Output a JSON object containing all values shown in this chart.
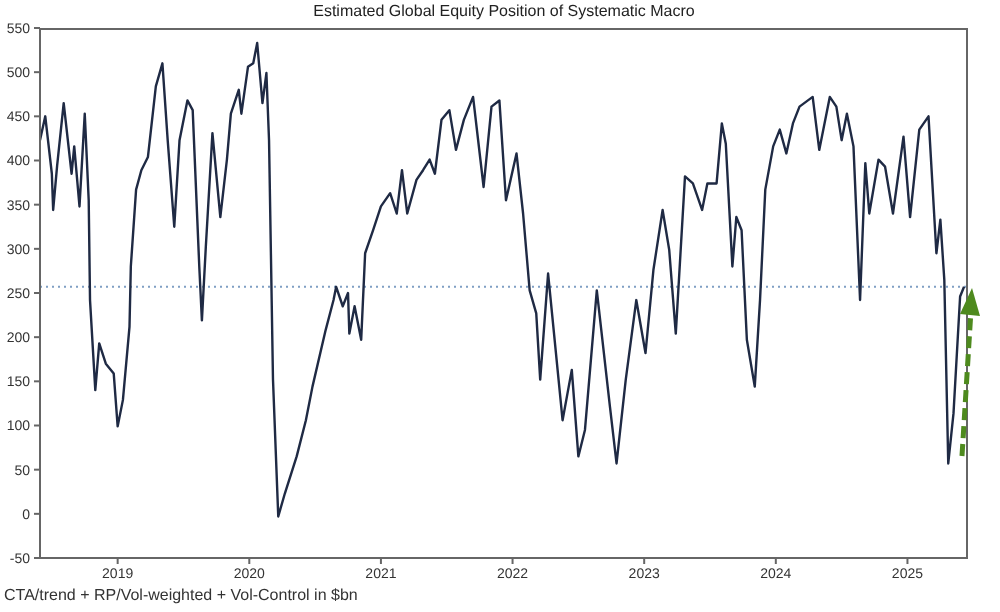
{
  "chart_data": {
    "type": "line",
    "title": "Estimated Global Equity Position of Systematic Macro",
    "annotations": [
      "CTA/trend + RP/Vol-weighted + Vol-Control in $bn"
    ],
    "x": [
      2018.41,
      2018.45,
      2018.5,
      2018.51,
      2018.54,
      2018.59,
      2018.65,
      2018.67,
      2018.71,
      2018.75,
      2018.78,
      2018.79,
      2018.83,
      2018.86,
      2018.91,
      2018.97,
      2019.0,
      2019.04,
      2019.09,
      2019.1,
      2019.14,
      2019.18,
      2019.23,
      2019.29,
      2019.34,
      2019.38,
      2019.43,
      2019.47,
      2019.53,
      2019.57,
      2019.62,
      2019.64,
      2019.67,
      2019.72,
      2019.78,
      2019.83,
      2019.86,
      2019.92,
      2019.94,
      2019.99,
      2020.03,
      2020.06,
      2020.1,
      2020.13,
      2020.15,
      2020.18,
      2020.22,
      2020.27,
      2020.36,
      2020.43,
      2020.48,
      2020.58,
      2020.64,
      2020.66,
      2020.71,
      2020.75,
      2020.76,
      2020.8,
      2020.85,
      2020.88,
      2020.94,
      2021.0,
      2021.07,
      2021.12,
      2021.16,
      2021.2,
      2021.27,
      2021.32,
      2021.37,
      2021.41,
      2021.46,
      2021.52,
      2021.57,
      2021.63,
      2021.7,
      2021.78,
      2021.84,
      2021.9,
      2021.95,
      2022.03,
      2022.08,
      2022.13,
      2022.18,
      2022.21,
      2022.27,
      2022.38,
      2022.45,
      2022.5,
      2022.55,
      2022.64,
      2022.74,
      2022.79,
      2022.86,
      2022.94,
      2023.01,
      2023.07,
      2023.14,
      2023.19,
      2023.24,
      2023.31,
      2023.37,
      2023.44,
      2023.48,
      2023.55,
      2023.59,
      2023.62,
      2023.67,
      2023.7,
      2023.74,
      2023.78,
      2023.84,
      2023.88,
      2023.92,
      2023.98,
      2024.03,
      2024.08,
      2024.13,
      2024.18,
      2024.28,
      2024.33,
      2024.41,
      2024.46,
      2024.5,
      2024.54,
      2024.59,
      2024.64,
      2024.68,
      2024.71,
      2024.78,
      2024.83,
      2024.89,
      2024.97,
      2025.02,
      2025.09,
      2025.16,
      2025.22,
      2025.25,
      2025.28,
      2025.31,
      2025.35,
      2025.4,
      2025.43
    ],
    "series": [
      {
        "color": "#1f2a44",
        "values": [
          423,
          450,
          385,
          344,
          394,
          465,
          385,
          416,
          348,
          453,
          355,
          242,
          140,
          193,
          170,
          159,
          99,
          129,
          212,
          280,
          367,
          389,
          404,
          484,
          510,
          423,
          325,
          423,
          468,
          457,
          280,
          219,
          303,
          431,
          336,
          401,
          453,
          480,
          453,
          506,
          510,
          533,
          465,
          499,
          423,
          152,
          -3,
          23,
          65,
          106,
          144,
          208,
          242,
          257,
          235,
          250,
          204,
          235,
          197,
          295,
          321,
          348,
          363,
          340,
          389,
          340,
          378,
          389,
          401,
          385,
          446,
          457,
          412,
          446,
          472,
          370,
          461,
          468,
          355,
          408,
          340,
          253,
          227,
          152,
          272,
          106,
          163,
          65,
          95,
          253,
          121,
          57,
          152,
          242,
          182,
          276,
          344,
          299,
          204,
          382,
          374,
          344,
          374,
          374,
          442,
          419,
          280,
          336,
          321,
          197,
          144,
          242,
          367,
          416,
          435,
          408,
          442,
          461,
          472,
          412,
          472,
          461,
          423,
          453,
          416,
          242,
          397,
          340,
          401,
          393,
          340,
          427,
          336,
          435,
          450,
          295,
          333,
          265,
          57,
          114,
          246,
          257
        ]
      }
    ],
    "xlim": [
      2018.41,
      2025.46
    ],
    "xticks": [
      2019,
      2020,
      2021,
      2022,
      2023,
      2024,
      2025
    ],
    "ylim": [
      -50,
      550
    ],
    "yticks": [
      -50,
      0,
      50,
      100,
      150,
      200,
      250,
      300,
      350,
      400,
      450,
      500,
      550
    ],
    "grid": false,
    "legend": false,
    "marker": "none",
    "line_style": "solid",
    "ref_lines": [
      {
        "axis": "y",
        "value": 257,
        "color": "#7f9fc4",
        "line_style": "dotted"
      }
    ]
  }
}
